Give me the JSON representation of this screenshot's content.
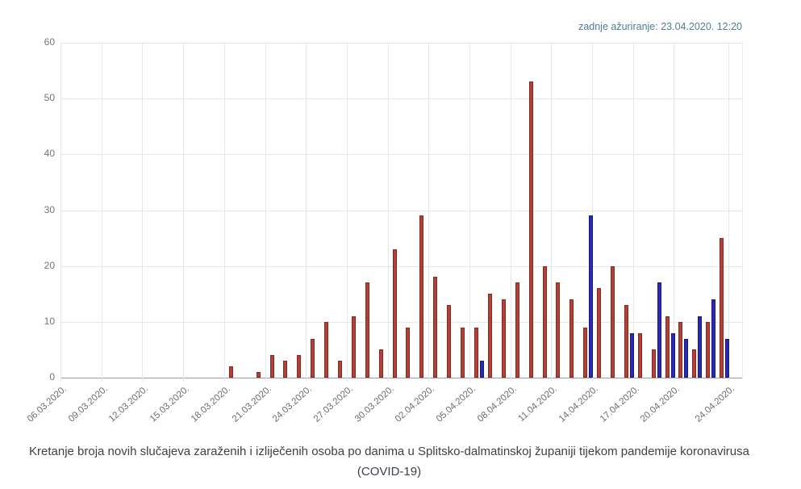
{
  "header": {
    "last_update": "zadnje ažuriranje: 23.04.2020. 12:20"
  },
  "title": {
    "line1": "Kretanje broja novih slučajeva zaraženih i izliječenih osoba po danima u Splitsko-dalmatinskoj županiji tijekom pandemije koronavirusa",
    "line2": "(COVID-19)"
  },
  "chart_data": {
    "type": "bar",
    "title": "Kretanje broja novih slučajeva zaraženih i izliječenih osoba po danima u Splitsko-dalmatinskoj županiji tijekom pandemije koronavirusa (COVID-19)",
    "ylim": [
      0,
      60
    ],
    "yticks": [
      0,
      10,
      20,
      30,
      40,
      50,
      60
    ],
    "grid": true,
    "legend_position": "none",
    "categories": [
      "06.03.2020.",
      "07.03.2020.",
      "08.03.2020.",
      "09.03.2020.",
      "10.03.2020.",
      "11.03.2020.",
      "12.03.2020.",
      "13.03.2020.",
      "14.03.2020.",
      "15.03.2020.",
      "16.03.2020.",
      "17.03.2020.",
      "18.03.2020.",
      "19.03.2020.",
      "20.03.2020.",
      "21.03.2020.",
      "22.03.2020.",
      "23.03.2020.",
      "24.03.2020.",
      "25.03.2020.",
      "26.03.2020.",
      "27.03.2020.",
      "28.03.2020.",
      "29.03.2020.",
      "30.03.2020.",
      "31.03.2020.",
      "01.04.2020.",
      "02.04.2020.",
      "03.04.2020.",
      "04.04.2020.",
      "05.04.2020.",
      "06.04.2020.",
      "07.04.2020.",
      "08.04.2020.",
      "09.04.2020.",
      "10.04.2020.",
      "11.04.2020.",
      "12.04.2020.",
      "13.04.2020.",
      "14.04.2020.",
      "15.04.2020.",
      "16.04.2020.",
      "17.04.2020.",
      "18.04.2020.",
      "19.04.2020.",
      "20.04.2020.",
      "21.04.2020.",
      "22.04.2020.",
      "23.04.2020.",
      "24.04.2020."
    ],
    "x_tick_indices": [
      0,
      3,
      6,
      9,
      12,
      15,
      18,
      21,
      24,
      27,
      30,
      33,
      36,
      39,
      42,
      45,
      49
    ],
    "x_tick_labels": [
      "06.03.2020.",
      "09.03.2020.",
      "12.03.2020.",
      "15.03.2020.",
      "18.03.2020.",
      "21.03.2020.",
      "24.03.2020.",
      "27.03.2020.",
      "30.03.2020.",
      "02.04.2020.",
      "05.04.2020.",
      "08.04.2020.",
      "11.04.2020.",
      "14.04.2020.",
      "17.04.2020.",
      "20.04.2020.",
      "24.04.2020."
    ],
    "series": [
      {
        "name": "zaraženi",
        "color": "#b04038",
        "values": [
          0,
          0,
          0,
          0,
          0,
          0,
          0,
          0,
          0,
          0,
          0,
          0,
          2,
          0,
          1,
          4,
          3,
          4,
          7,
          10,
          3,
          11,
          17,
          5,
          23,
          9,
          29,
          18,
          13,
          9,
          9,
          15,
          14,
          17,
          53,
          20,
          17,
          14,
          9,
          16,
          20,
          13,
          8,
          5,
          11,
          10,
          5,
          10,
          25,
          0
        ]
      },
      {
        "name": "izliječeni",
        "color": "#2a2ab4",
        "values": [
          0,
          0,
          0,
          0,
          0,
          0,
          0,
          0,
          0,
          0,
          0,
          0,
          0,
          0,
          0,
          0,
          0,
          0,
          0,
          0,
          0,
          0,
          0,
          0,
          0,
          0,
          0,
          0,
          0,
          0,
          3,
          0,
          0,
          0,
          0,
          0,
          0,
          0,
          29,
          0,
          0,
          8,
          0,
          17,
          8,
          7,
          11,
          14,
          7,
          0
        ]
      }
    ]
  }
}
